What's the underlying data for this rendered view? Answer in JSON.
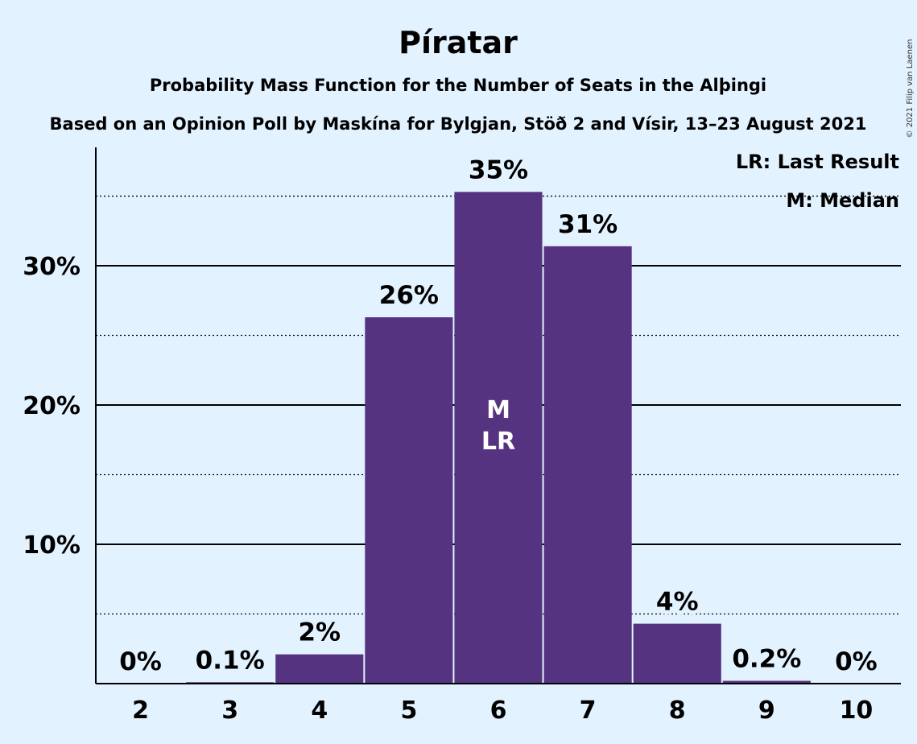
{
  "chart_data": {
    "type": "bar",
    "title": "Píratar",
    "subtitle_1": "Probability Mass Function for the Number of Seats in the Alþingi",
    "subtitle_2": "Based on an Opinion Poll by Maskína for Bylgjan, Stöð 2 and Vísir, 13–23 August 2021",
    "categories": [
      "2",
      "3",
      "4",
      "5",
      "6",
      "7",
      "8",
      "9",
      "10"
    ],
    "values": [
      0,
      0.1,
      2.1,
      26.3,
      35.3,
      31.4,
      4.3,
      0.2,
      0
    ],
    "labels": [
      "0%",
      "0.1%",
      "2%",
      "26%",
      "35%",
      "31%",
      "4%",
      "0.2%",
      "0%"
    ],
    "ylim": [
      0,
      38.5
    ],
    "y_major_ticks": [
      10,
      20,
      30
    ],
    "y_major_tick_labels": [
      "10%",
      "20%",
      "30%"
    ],
    "y_minor_gridlines": [
      5,
      15,
      25,
      35
    ],
    "grid": true,
    "bar_color": "#553380",
    "background_color": "#e3f2ff",
    "median_index": 4,
    "last_result_index": 4,
    "median_marker": "M",
    "last_result_marker": "LR",
    "legend": {
      "placement": "top-right",
      "items": [
        "LR: Last Result",
        "M: Median"
      ]
    },
    "copyright": "© 2021 Filip van Laenen"
  }
}
